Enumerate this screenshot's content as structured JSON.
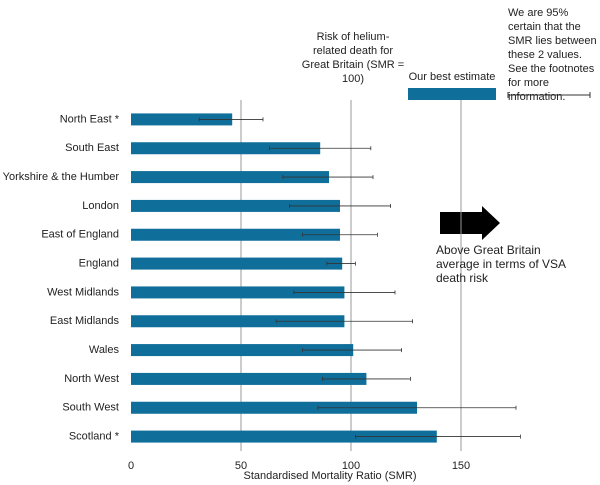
{
  "chart_data": {
    "type": "hbar",
    "categories": [
      "North East *",
      "South East",
      "Yorkshire & the Humber",
      "London",
      "East of England",
      "England",
      "West Midlands",
      "East Midlands",
      "Wales",
      "North West",
      "South West",
      "Scotland *"
    ],
    "series": [
      {
        "name": "Our best estimate",
        "color": "#0f6f9a",
        "values": [
          46,
          86,
          90,
          95,
          95,
          96,
          97,
          97,
          101,
          107,
          130,
          139
        ],
        "ci_low": [
          31,
          63,
          69,
          72,
          78,
          89,
          74,
          66,
          78,
          87,
          85,
          102
        ],
        "ci_high": [
          60,
          109,
          110,
          118,
          112,
          102,
          120,
          128,
          123,
          127,
          175,
          177
        ]
      }
    ],
    "xlim": [
      0,
      200
    ],
    "xticks": [
      0,
      50,
      100,
      150
    ],
    "grid": true,
    "x_label": "Standardised Mortality Ratio (SMR)",
    "reference_note": "Risk of helium-related death for Great Britain (SMR = 100)",
    "error_legend": "We are 95% certain that the SMR lies between these 2 values. See the footnotes for more information.",
    "arrow_note": "Above Great Britain average in terms of VSA death risk"
  }
}
